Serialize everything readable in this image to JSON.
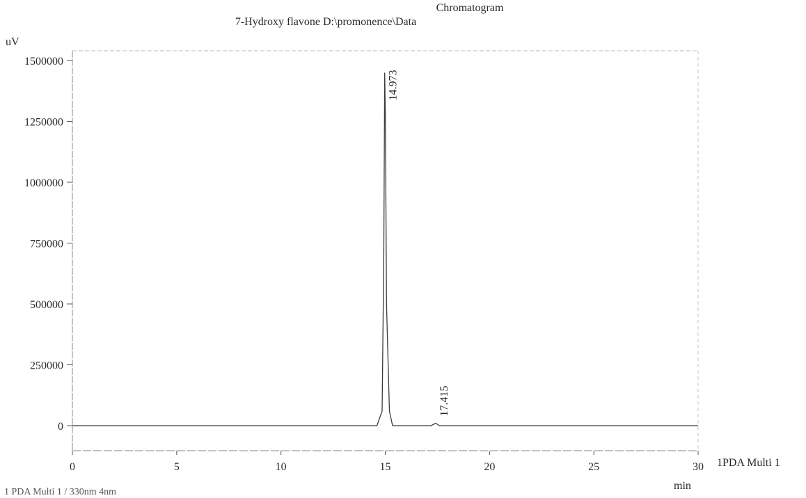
{
  "chart_data": {
    "type": "line",
    "title": "Chromatogram",
    "subtitle": "7-Hydroxy flavone D:\\promonence\\Data",
    "ylabel": "uV",
    "xlabel": "min",
    "xlim": [
      0,
      30
    ],
    "ylim": [
      -100000,
      1530000
    ],
    "x_ticks": [
      0,
      5,
      10,
      15,
      20,
      25,
      30
    ],
    "y_ticks": [
      0,
      250000,
      500000,
      750000,
      1000000,
      1250000,
      1500000
    ],
    "series": [
      {
        "name": "1PDA Multi 1",
        "x": [
          0,
          14.6,
          14.85,
          14.93,
          14.973,
          15.01,
          15.06,
          15.2,
          15.35,
          17.2,
          17.415,
          17.6,
          30
        ],
        "y": [
          0,
          0,
          60000,
          700000,
          1450000,
          1240000,
          500000,
          60000,
          0,
          0,
          10000,
          0,
          0
        ]
      }
    ],
    "peak_labels": [
      {
        "x": 14.973,
        "label": "14.973"
      },
      {
        "x": 17.415,
        "label": "17.415"
      }
    ],
    "grid": false,
    "footer": "1 PDA Multi 1 / 330nm 4nm"
  }
}
